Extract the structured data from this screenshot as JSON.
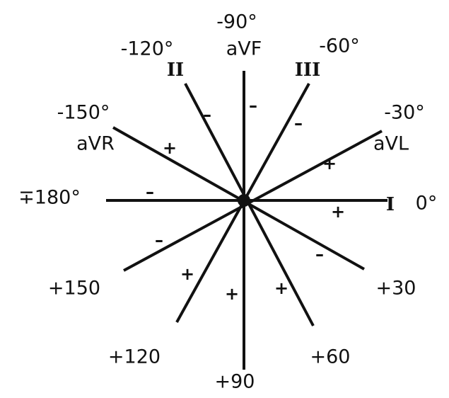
{
  "axes": [
    {
      "angle": "-90°",
      "lead": "aVF"
    },
    {
      "angle": "-120°",
      "lead": "II"
    },
    {
      "angle": "-60°",
      "lead": "III"
    },
    {
      "angle": "-150°",
      "lead": "aVR"
    },
    {
      "angle": "-30°",
      "lead": "aVL"
    },
    {
      "angle": "∓180°"
    },
    {
      "angle": "0°",
      "lead": "I"
    },
    {
      "angle": "+150"
    },
    {
      "angle": "+30"
    },
    {
      "angle": "+120"
    },
    {
      "angle": "+60"
    },
    {
      "angle": "+90"
    }
  ],
  "signs": [
    "–",
    "–",
    "–",
    "+",
    "+",
    "–",
    "+",
    "–",
    "–",
    "+",
    "+",
    "+"
  ]
}
